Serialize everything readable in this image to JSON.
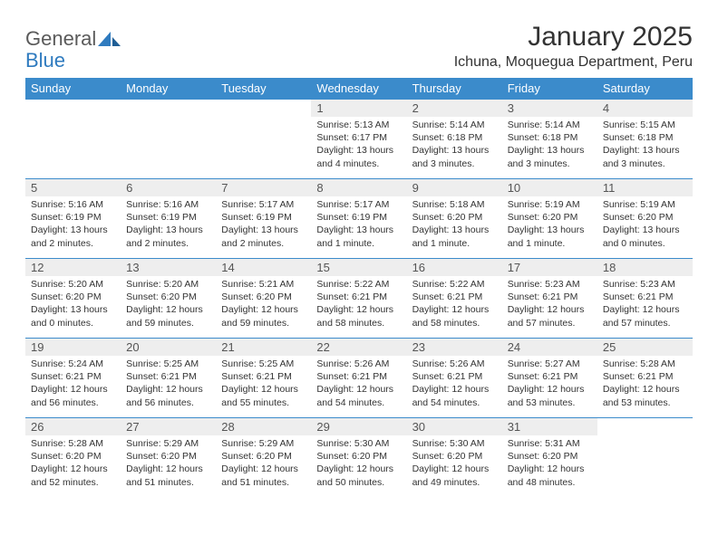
{
  "brand": {
    "name_part1": "General",
    "name_part2": "Blue"
  },
  "title": "January 2025",
  "location": "Ichuna, Moquegua Department, Peru",
  "colors": {
    "header_bg": "#3b8bcb",
    "header_text": "#ffffff",
    "daynum_bg": "#eeeeee",
    "border": "#3b8bcb",
    "body_text": "#333333",
    "logo_gray": "#5a5a5a",
    "logo_blue": "#2f7bbf"
  },
  "weekdays": [
    "Sunday",
    "Monday",
    "Tuesday",
    "Wednesday",
    "Thursday",
    "Friday",
    "Saturday"
  ],
  "weeks": [
    [
      {
        "empty": true
      },
      {
        "empty": true
      },
      {
        "empty": true
      },
      {
        "num": "1",
        "sunrise": "Sunrise: 5:13 AM",
        "sunset": "Sunset: 6:17 PM",
        "daylight": "Daylight: 13 hours and 4 minutes."
      },
      {
        "num": "2",
        "sunrise": "Sunrise: 5:14 AM",
        "sunset": "Sunset: 6:18 PM",
        "daylight": "Daylight: 13 hours and 3 minutes."
      },
      {
        "num": "3",
        "sunrise": "Sunrise: 5:14 AM",
        "sunset": "Sunset: 6:18 PM",
        "daylight": "Daylight: 13 hours and 3 minutes."
      },
      {
        "num": "4",
        "sunrise": "Sunrise: 5:15 AM",
        "sunset": "Sunset: 6:18 PM",
        "daylight": "Daylight: 13 hours and 3 minutes."
      }
    ],
    [
      {
        "num": "5",
        "sunrise": "Sunrise: 5:16 AM",
        "sunset": "Sunset: 6:19 PM",
        "daylight": "Daylight: 13 hours and 2 minutes."
      },
      {
        "num": "6",
        "sunrise": "Sunrise: 5:16 AM",
        "sunset": "Sunset: 6:19 PM",
        "daylight": "Daylight: 13 hours and 2 minutes."
      },
      {
        "num": "7",
        "sunrise": "Sunrise: 5:17 AM",
        "sunset": "Sunset: 6:19 PM",
        "daylight": "Daylight: 13 hours and 2 minutes."
      },
      {
        "num": "8",
        "sunrise": "Sunrise: 5:17 AM",
        "sunset": "Sunset: 6:19 PM",
        "daylight": "Daylight: 13 hours and 1 minute."
      },
      {
        "num": "9",
        "sunrise": "Sunrise: 5:18 AM",
        "sunset": "Sunset: 6:20 PM",
        "daylight": "Daylight: 13 hours and 1 minute."
      },
      {
        "num": "10",
        "sunrise": "Sunrise: 5:19 AM",
        "sunset": "Sunset: 6:20 PM",
        "daylight": "Daylight: 13 hours and 1 minute."
      },
      {
        "num": "11",
        "sunrise": "Sunrise: 5:19 AM",
        "sunset": "Sunset: 6:20 PM",
        "daylight": "Daylight: 13 hours and 0 minutes."
      }
    ],
    [
      {
        "num": "12",
        "sunrise": "Sunrise: 5:20 AM",
        "sunset": "Sunset: 6:20 PM",
        "daylight": "Daylight: 13 hours and 0 minutes."
      },
      {
        "num": "13",
        "sunrise": "Sunrise: 5:20 AM",
        "sunset": "Sunset: 6:20 PM",
        "daylight": "Daylight: 12 hours and 59 minutes."
      },
      {
        "num": "14",
        "sunrise": "Sunrise: 5:21 AM",
        "sunset": "Sunset: 6:20 PM",
        "daylight": "Daylight: 12 hours and 59 minutes."
      },
      {
        "num": "15",
        "sunrise": "Sunrise: 5:22 AM",
        "sunset": "Sunset: 6:21 PM",
        "daylight": "Daylight: 12 hours and 58 minutes."
      },
      {
        "num": "16",
        "sunrise": "Sunrise: 5:22 AM",
        "sunset": "Sunset: 6:21 PM",
        "daylight": "Daylight: 12 hours and 58 minutes."
      },
      {
        "num": "17",
        "sunrise": "Sunrise: 5:23 AM",
        "sunset": "Sunset: 6:21 PM",
        "daylight": "Daylight: 12 hours and 57 minutes."
      },
      {
        "num": "18",
        "sunrise": "Sunrise: 5:23 AM",
        "sunset": "Sunset: 6:21 PM",
        "daylight": "Daylight: 12 hours and 57 minutes."
      }
    ],
    [
      {
        "num": "19",
        "sunrise": "Sunrise: 5:24 AM",
        "sunset": "Sunset: 6:21 PM",
        "daylight": "Daylight: 12 hours and 56 minutes."
      },
      {
        "num": "20",
        "sunrise": "Sunrise: 5:25 AM",
        "sunset": "Sunset: 6:21 PM",
        "daylight": "Daylight: 12 hours and 56 minutes."
      },
      {
        "num": "21",
        "sunrise": "Sunrise: 5:25 AM",
        "sunset": "Sunset: 6:21 PM",
        "daylight": "Daylight: 12 hours and 55 minutes."
      },
      {
        "num": "22",
        "sunrise": "Sunrise: 5:26 AM",
        "sunset": "Sunset: 6:21 PM",
        "daylight": "Daylight: 12 hours and 54 minutes."
      },
      {
        "num": "23",
        "sunrise": "Sunrise: 5:26 AM",
        "sunset": "Sunset: 6:21 PM",
        "daylight": "Daylight: 12 hours and 54 minutes."
      },
      {
        "num": "24",
        "sunrise": "Sunrise: 5:27 AM",
        "sunset": "Sunset: 6:21 PM",
        "daylight": "Daylight: 12 hours and 53 minutes."
      },
      {
        "num": "25",
        "sunrise": "Sunrise: 5:28 AM",
        "sunset": "Sunset: 6:21 PM",
        "daylight": "Daylight: 12 hours and 53 minutes."
      }
    ],
    [
      {
        "num": "26",
        "sunrise": "Sunrise: 5:28 AM",
        "sunset": "Sunset: 6:20 PM",
        "daylight": "Daylight: 12 hours and 52 minutes."
      },
      {
        "num": "27",
        "sunrise": "Sunrise: 5:29 AM",
        "sunset": "Sunset: 6:20 PM",
        "daylight": "Daylight: 12 hours and 51 minutes."
      },
      {
        "num": "28",
        "sunrise": "Sunrise: 5:29 AM",
        "sunset": "Sunset: 6:20 PM",
        "daylight": "Daylight: 12 hours and 51 minutes."
      },
      {
        "num": "29",
        "sunrise": "Sunrise: 5:30 AM",
        "sunset": "Sunset: 6:20 PM",
        "daylight": "Daylight: 12 hours and 50 minutes."
      },
      {
        "num": "30",
        "sunrise": "Sunrise: 5:30 AM",
        "sunset": "Sunset: 6:20 PM",
        "daylight": "Daylight: 12 hours and 49 minutes."
      },
      {
        "num": "31",
        "sunrise": "Sunrise: 5:31 AM",
        "sunset": "Sunset: 6:20 PM",
        "daylight": "Daylight: 12 hours and 48 minutes."
      },
      {
        "empty": true
      }
    ]
  ]
}
